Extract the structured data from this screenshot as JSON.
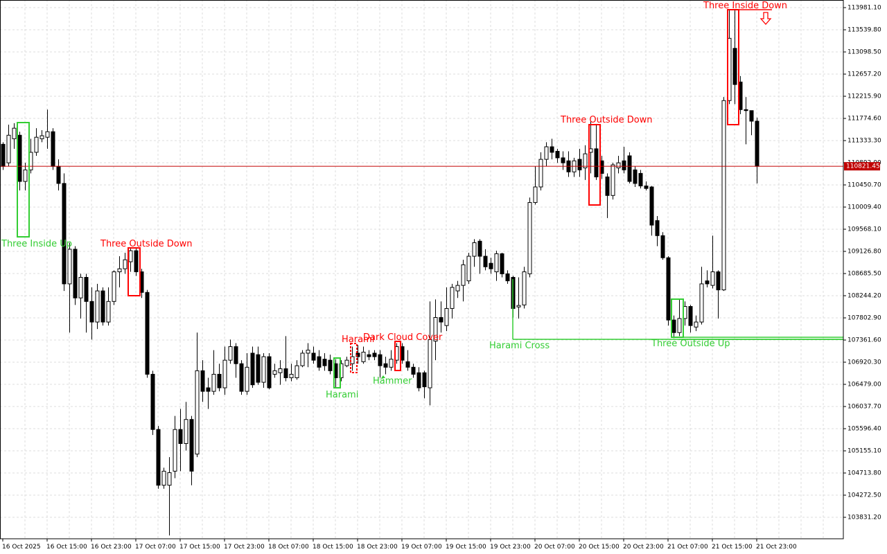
{
  "chart_data": {
    "type": "candlestick",
    "x": [
      "16 Oct 2025",
      null,
      null,
      null,
      null,
      null,
      null,
      null,
      "16 Oct 15:00",
      null,
      null,
      null,
      null,
      null,
      null,
      null,
      "16 Oct 23:00",
      null,
      null,
      null,
      null,
      null,
      null,
      null,
      "17 Oct 07:00",
      null,
      null,
      null,
      null,
      null,
      null,
      null,
      "17 Oct 15:00",
      null,
      null,
      null,
      null,
      null,
      null,
      null,
      "17 Oct 23:00",
      null,
      null,
      null,
      null,
      null,
      null,
      null,
      "18 Oct 07:00",
      null,
      null,
      null,
      null,
      null,
      null,
      null,
      "18 Oct 15:00",
      null,
      null,
      null,
      null,
      null,
      null,
      null,
      "18 Oct 23:00",
      null,
      null,
      null,
      null,
      null,
      null,
      null,
      "19 Oct 07:00",
      null,
      null,
      null,
      null,
      null,
      null,
      null,
      "19 Oct 15:00",
      null,
      null,
      null,
      null,
      null,
      null,
      null,
      "19 Oct 23:00",
      null,
      null,
      null,
      null,
      null,
      null,
      null,
      "20 Oct 07:00",
      null,
      null,
      null,
      null,
      null,
      null,
      null,
      "20 Oct 15:00",
      null,
      null,
      null,
      null,
      null,
      null,
      null,
      "20 Oct 23:00",
      null,
      null,
      null,
      null,
      null,
      null,
      null,
      "21 Oct 07:00",
      null,
      null,
      null,
      null,
      null,
      null,
      null,
      "21 Oct 15:00",
      null,
      null,
      null,
      null,
      null,
      null,
      null,
      "21 Oct 23:00"
    ],
    "open": [
      111260,
      110890,
      111370,
      111440,
      110520,
      110750,
      111100,
      111370,
      111400,
      111510,
      110820,
      110480,
      108480,
      109170,
      108200,
      108610,
      108130,
      107720,
      108340,
      107720,
      108130,
      108720,
      108780,
      108920,
      109140,
      108720,
      108310,
      106680,
      105580,
      104470,
      104470,
      104750,
      105580,
      105300,
      105780,
      105090,
      106750,
      106410,
      106340,
      106680,
      106410,
      106960,
      107230,
      106890,
      106340,
      107100,
      107070,
      106520,
      107030,
      106680,
      106710,
      106790,
      106610,
      106610,
      106850,
      107100,
      107100,
      107030,
      106980,
      106960,
      106890,
      106610,
      106850,
      106890,
      107100,
      106930,
      107070,
      107100,
      107070,
      106890,
      106820,
      106960,
      107230,
      106930,
      106820,
      106710,
      106710,
      106410,
      107340,
      107810,
      107650,
      107990,
      108340,
      108450,
      108540,
      109030,
      109330,
      109030,
      108890,
      108720,
      109080,
      108680,
      108610,
      108020,
      108060,
      108680,
      110100,
      110410,
      110960,
      111210,
      111120,
      110990,
      110930,
      110710,
      110960,
      110790,
      111100,
      111170,
      110930,
      110610,
      110240,
      110790,
      110930,
      111030,
      110750,
      110680,
      110430,
      110410,
      109740,
      109440,
      109000,
      107760,
      107510,
      107790,
      108030,
      107620,
      107720,
      108540,
      108450,
      108720,
      108360,
      112130,
      113170,
      112500,
      111950,
      111930,
      111720
    ],
    "high": [
      111300,
      111650,
      111680,
      111510,
      110890,
      111370,
      111580,
      111540,
      111950,
      111580,
      110960,
      110680,
      109300,
      109230,
      108680,
      108680,
      108410,
      108480,
      108410,
      108410,
      108750,
      109030,
      109100,
      109190,
      109190,
      108780,
      108360,
      106750,
      105650,
      104820,
      105030,
      105850,
      105990,
      106130,
      105850,
      107510,
      106960,
      106610,
      107160,
      106890,
      107230,
      107370,
      107300,
      106960,
      107100,
      107230,
      107230,
      107100,
      107100,
      106890,
      106960,
      107440,
      106890,
      106960,
      107160,
      107300,
      107230,
      107160,
      107100,
      107070,
      106980,
      106960,
      107030,
      107230,
      107260,
      107230,
      107160,
      107160,
      107160,
      107030,
      107160,
      107300,
      107300,
      107160,
      106890,
      106820,
      106750,
      108130,
      108170,
      108130,
      108410,
      108480,
      108540,
      108960,
      109100,
      109370,
      109370,
      109170,
      109000,
      109140,
      109100,
      108750,
      108640,
      108610,
      108820,
      110200,
      110820,
      111100,
      111300,
      111370,
      111170,
      111120,
      111120,
      110990,
      111170,
      111240,
      111720,
      111650,
      111030,
      110680,
      110890,
      111030,
      111210,
      111100,
      110820,
      110750,
      110520,
      110430,
      109830,
      109510,
      109030,
      107850,
      108170,
      108130,
      108060,
      107850,
      108820,
      108750,
      109440,
      108750,
      112200,
      113940,
      113940,
      112620,
      112200,
      111930,
      111790
    ],
    "low": [
      110750,
      110820,
      111170,
      110340,
      110340,
      110680,
      111030,
      111300,
      111170,
      110750,
      110340,
      108340,
      107510,
      108060,
      107790,
      107510,
      107370,
      107580,
      107650,
      107650,
      108060,
      108410,
      108680,
      108720,
      108640,
      108200,
      106610,
      105470,
      104400,
      104400,
      103470,
      104610,
      104750,
      105160,
      104470,
      105030,
      106130,
      105990,
      106270,
      106340,
      106270,
      106890,
      106610,
      106270,
      106270,
      106410,
      106470,
      106410,
      106380,
      106610,
      106470,
      106540,
      106540,
      106570,
      106820,
      106820,
      106890,
      106750,
      106750,
      106680,
      106410,
      106540,
      106820,
      106750,
      106890,
      106890,
      106960,
      106960,
      106610,
      106680,
      106750,
      106890,
      106890,
      106750,
      106610,
      106340,
      106200,
      106060,
      106960,
      107510,
      107540,
      107790,
      108200,
      108130,
      108480,
      108820,
      108680,
      108750,
      108680,
      108540,
      108610,
      108480,
      107810,
      107790,
      107990,
      108610,
      110060,
      110340,
      110820,
      110960,
      110890,
      110750,
      110610,
      110610,
      110610,
      110550,
      110680,
      110550,
      110570,
      109790,
      110160,
      110680,
      110680,
      110480,
      110410,
      110380,
      110340,
      109440,
      109230,
      108960,
      107650,
      107400,
      107440,
      107650,
      107510,
      107540,
      107670,
      108410,
      108390,
      107790,
      108340,
      112060,
      112060,
      111860,
      111260,
      111440,
      110480
    ],
    "close": [
      110820,
      111440,
      111580,
      110520,
      110750,
      111100,
      111400,
      111430,
      111510,
      110820,
      110480,
      108480,
      109170,
      108200,
      108610,
      108130,
      107720,
      108340,
      107720,
      108130,
      108720,
      108780,
      108960,
      109140,
      108720,
      108310,
      106680,
      105580,
      104470,
      104750,
      104720,
      105580,
      105300,
      105780,
      104750,
      106750,
      106340,
      106340,
      106680,
      106410,
      106960,
      107230,
      106890,
      106340,
      106820,
      106470,
      106520,
      107030,
      106410,
      106750,
      106790,
      106610,
      106680,
      106850,
      107100,
      107160,
      106960,
      106820,
      106850,
      106750,
      106610,
      106890,
      106960,
      107030,
      107030,
      107120,
      107030,
      107030,
      106850,
      106820,
      106980,
      107230,
      106960,
      106820,
      106680,
      106410,
      106430,
      107370,
      107810,
      107720,
      107990,
      108410,
      108450,
      108860,
      109030,
      109300,
      109030,
      108820,
      108780,
      109080,
      108680,
      108540,
      107990,
      108050,
      108720,
      110100,
      110410,
      110960,
      111210,
      111100,
      110990,
      110890,
      110710,
      110930,
      110750,
      111070,
      111170,
      110610,
      110680,
      110240,
      110850,
      110890,
      110750,
      110520,
      110480,
      110430,
      110380,
      109650,
      109440,
      109000,
      107760,
      107510,
      107790,
      108030,
      107650,
      107720,
      108480,
      108480,
      108720,
      108360,
      112130,
      113370,
      112450,
      111950,
      111930,
      111720,
      110821.45
    ],
    "bull_color": "#ffffff",
    "bear_color": "#000000",
    "candle_outline": "#000000",
    "ylim": [
      103404,
      114133
    ],
    "yticks": [
      {
        "value": 113981.1,
        "label": "113981.10"
      },
      {
        "value": 113539.8,
        "label": "113539.80"
      },
      {
        "value": 113098.5,
        "label": "113098.50"
      },
      {
        "value": 112657.2,
        "label": "112657.20"
      },
      {
        "value": 112215.9,
        "label": "112215.90"
      },
      {
        "value": 111774.6,
        "label": "111774.60"
      },
      {
        "value": 111333.3,
        "label": "111333.30"
      },
      {
        "value": 110892,
        "label": "110892.00"
      },
      {
        "value": 110450.7,
        "label": "110450.70"
      },
      {
        "value": 110009.4,
        "label": "110009.40"
      },
      {
        "value": 109568.1,
        "label": "109568.10"
      },
      {
        "value": 109126.8,
        "label": "109126.80"
      },
      {
        "value": 108685.5,
        "label": "108685.50"
      },
      {
        "value": 108244.2,
        "label": "108244.20"
      },
      {
        "value": 107802.9,
        "label": "107802.90"
      },
      {
        "value": 107361.6,
        "label": "107361.60"
      },
      {
        "value": 106920.3,
        "label": "106920.30"
      },
      {
        "value": 106479,
        "label": "106479.00"
      },
      {
        "value": 106037.7,
        "label": "106037.70"
      },
      {
        "value": 105596.4,
        "label": "105596.40"
      },
      {
        "value": 105155.1,
        "label": "105155.10"
      },
      {
        "value": 104713.8,
        "label": "104713.80"
      },
      {
        "value": 104272.5,
        "label": "104272.50"
      },
      {
        "value": 103831.2,
        "label": "103831.20"
      }
    ],
    "grid": true,
    "current_price": 110821.45,
    "current_price_color": "#c00000",
    "patterns": [
      {
        "label": "Three Inside Up",
        "color": "#32cd32"
      },
      {
        "label": "Three Outside Down",
        "color": "#ff0000"
      },
      {
        "label": "Harami",
        "color": "#ff0000"
      },
      {
        "label": "Dark Cloud Cover",
        "color": "#ff0000"
      },
      {
        "label": "Harami",
        "color": "#32cd32"
      },
      {
        "label": "Hammer",
        "color": "#32cd32"
      },
      {
        "label": "Harami Cross",
        "color": "#32cd32"
      },
      {
        "label": "Three Outside Down",
        "color": "#ff0000"
      },
      {
        "label": "Three Outside Up",
        "color": "#32cd32"
      },
      {
        "label": "Three Inside Down",
        "color": "#ff0000"
      }
    ]
  }
}
